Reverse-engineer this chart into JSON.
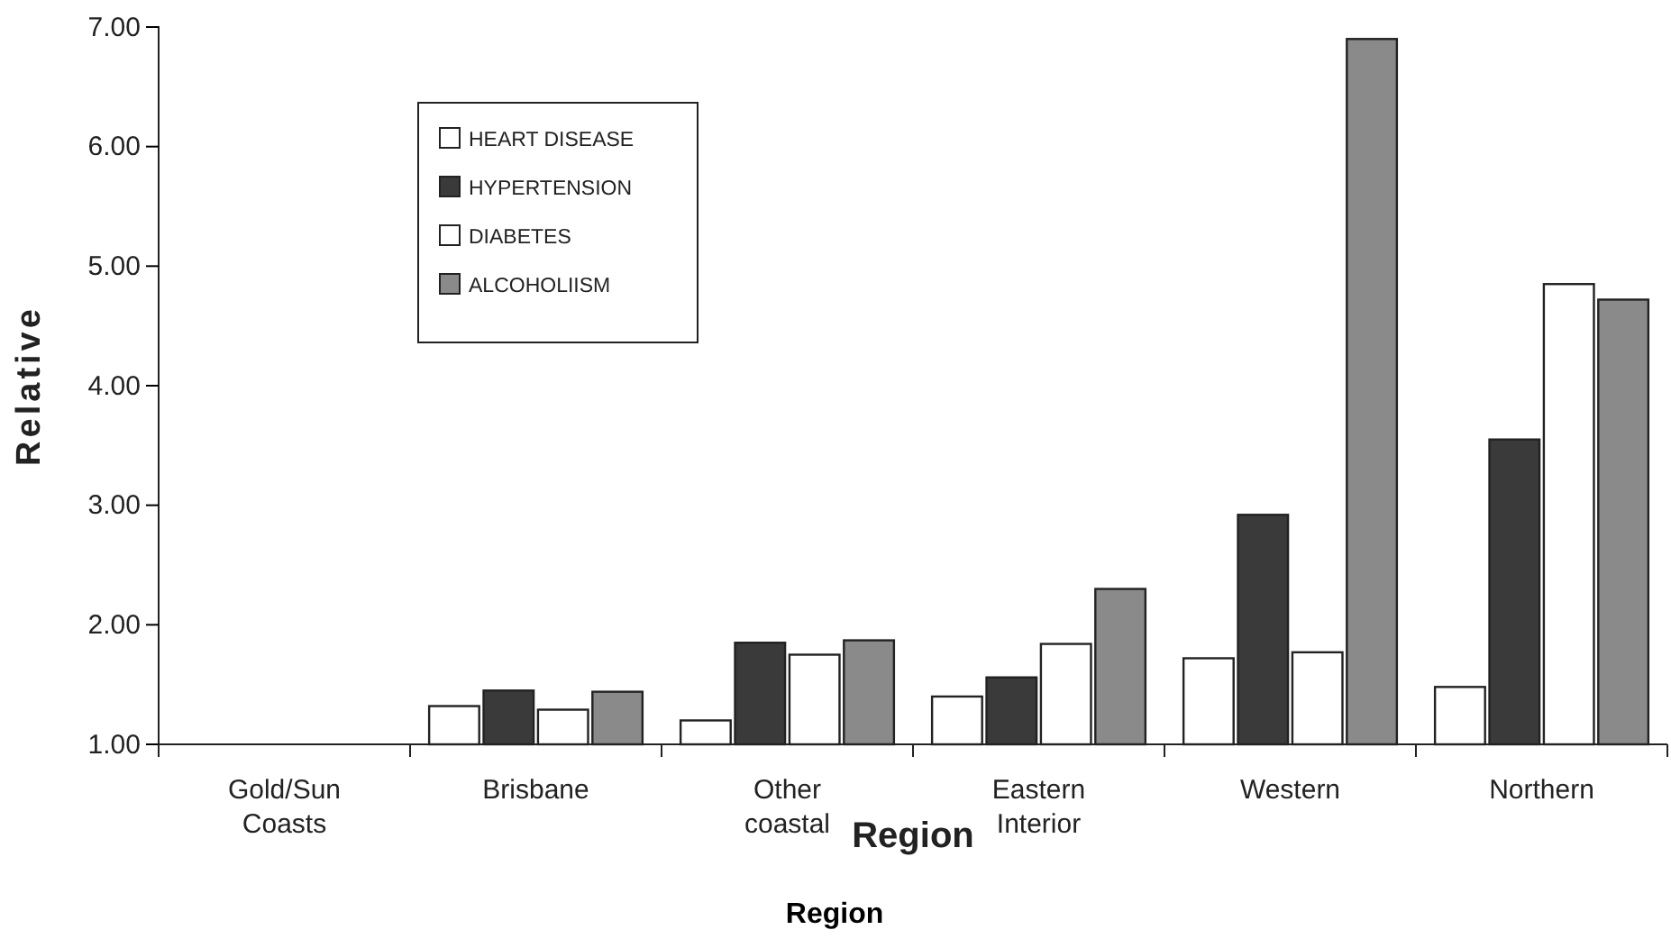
{
  "chart_data": {
    "type": "bar",
    "xlabel": "Region",
    "ylabel": "Relative",
    "categories": [
      "Gold/Sun Coasts",
      "Brisbane",
      "Other coastal",
      "Eastern Interior",
      "Western",
      "Northern"
    ],
    "series": [
      {
        "name": "HEART DISEASE",
        "color": "#ffffff",
        "values": [
          1,
          1.32,
          1.2,
          1.4,
          1.72,
          1.48
        ]
      },
      {
        "name": "HYPERTENSION",
        "color": "#3a3a3a",
        "values": [
          1,
          1.45,
          1.85,
          1.56,
          2.92,
          3.55
        ]
      },
      {
        "name": "DIABETES",
        "color": "#ffffff",
        "values": [
          1,
          1.29,
          1.75,
          1.84,
          1.77,
          4.85
        ]
      },
      {
        "name": "ALCOHOLIISM",
        "color": "#8a8a8a",
        "values": [
          1,
          1.44,
          1.87,
          2.3,
          6.9,
          4.72
        ]
      }
    ],
    "ylim": [
      1,
      7
    ],
    "yticks": [
      {
        "value": 1,
        "label": "1.00"
      },
      {
        "value": 2,
        "label": "2.00"
      },
      {
        "value": 3,
        "label": "3.00"
      },
      {
        "value": 4,
        "label": "4.00"
      },
      {
        "value": 5,
        "label": "5.00"
      },
      {
        "value": 6,
        "label": "6.00"
      },
      {
        "value": 7,
        "label": "7.00"
      }
    ],
    "grid": false,
    "legend": "top left",
    "annotations": [
      "Region"
    ]
  }
}
